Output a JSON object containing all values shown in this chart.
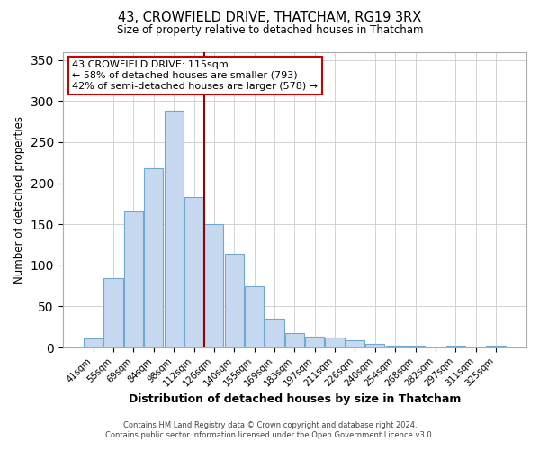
{
  "title": "43, CROWFIELD DRIVE, THATCHAM, RG19 3RX",
  "subtitle": "Size of property relative to detached houses in Thatcham",
  "xlabel": "Distribution of detached houses by size in Thatcham",
  "ylabel": "Number of detached properties",
  "bin_labels": [
    "41sqm",
    "55sqm",
    "69sqm",
    "84sqm",
    "98sqm",
    "112sqm",
    "126sqm",
    "140sqm",
    "155sqm",
    "169sqm",
    "183sqm",
    "197sqm",
    "211sqm",
    "226sqm",
    "240sqm",
    "254sqm",
    "268sqm",
    "282sqm",
    "297sqm",
    "311sqm",
    "325sqm"
  ],
  "bar_heights": [
    11,
    84,
    165,
    218,
    288,
    183,
    150,
    114,
    75,
    35,
    18,
    13,
    12,
    9,
    5,
    2,
    2,
    0,
    2,
    0,
    2
  ],
  "bar_color": "#c6d9f0",
  "bar_edge_color": "#6fa8d0",
  "vline_x": 5.5,
  "vline_color": "#990000",
  "annotation_title": "43 CROWFIELD DRIVE: 115sqm",
  "annotation_line1": "← 58% of detached houses are smaller (793)",
  "annotation_line2": "42% of semi-detached houses are larger (578) →",
  "annotation_box_color": "#ffffff",
  "annotation_box_edge": "#cc0000",
  "ylim": [
    0,
    360
  ],
  "yticks": [
    0,
    50,
    100,
    150,
    200,
    250,
    300,
    350
  ],
  "footer1": "Contains HM Land Registry data © Crown copyright and database right 2024.",
  "footer2": "Contains public sector information licensed under the Open Government Licence v3.0."
}
